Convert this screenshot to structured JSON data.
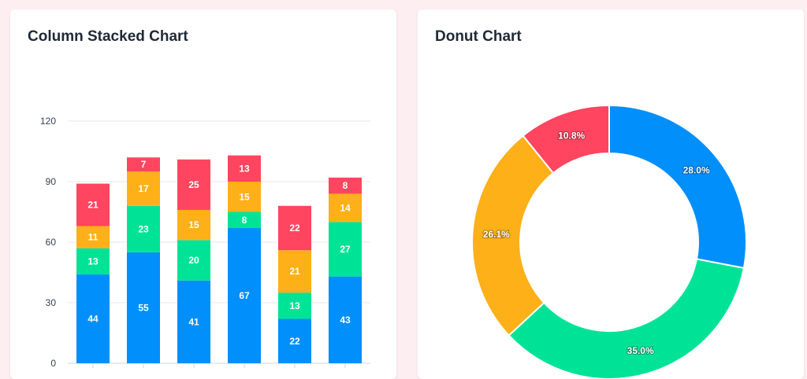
{
  "chart_data": [
    {
      "type": "bar",
      "stacked": true,
      "title": "Column Stacked Chart",
      "categories": [
        "",
        "",
        "",
        "",
        "",
        ""
      ],
      "series": [
        {
          "values": [
            44,
            55,
            41,
            67,
            22,
            43
          ],
          "color": "#008ffb"
        },
        {
          "values": [
            13,
            23,
            20,
            8,
            13,
            27
          ],
          "color": "#00e396"
        },
        {
          "values": [
            11,
            17,
            15,
            15,
            21,
            14
          ],
          "color": "#feb019"
        },
        {
          "values": [
            21,
            7,
            25,
            13,
            22,
            8
          ],
          "color": "#ff4560"
        }
      ],
      "yticks": [
        "0",
        "30",
        "60",
        "90",
        "120"
      ],
      "ylim": [
        0,
        120
      ],
      "grid": true,
      "data_labels": true
    },
    {
      "type": "pie",
      "donut": true,
      "title": "Donut Chart",
      "slices": [
        {
          "value": 28.0,
          "label": "28.0%",
          "color": "#008ffb"
        },
        {
          "value": 35.0,
          "label": "35.0%",
          "color": "#00e396"
        },
        {
          "value": 26.1,
          "label": "26.1%",
          "color": "#feb019"
        },
        {
          "value": 10.8,
          "label": "10.8%",
          "color": "#ff4560"
        }
      ]
    }
  ]
}
